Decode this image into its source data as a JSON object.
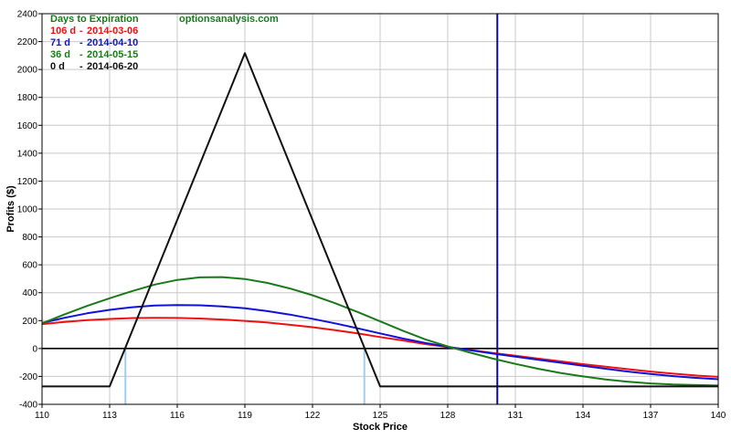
{
  "chart_data": {
    "type": "line",
    "title": "",
    "xlabel": "Stock Price",
    "ylabel": "Profits ($)",
    "xlim": [
      110,
      140
    ],
    "ylim": [
      -400,
      2400
    ],
    "x_ticks": [
      110,
      113,
      116,
      119,
      122,
      125,
      128,
      131,
      134,
      137,
      140
    ],
    "y_ticks": [
      -400,
      -200,
      0,
      200,
      400,
      600,
      800,
      1000,
      1200,
      1400,
      1600,
      1800,
      2000,
      2200,
      2400
    ],
    "grid": true,
    "legend_placement": "top-left",
    "legend_heading": "Days to Expiration",
    "watermark": "optionsanalysis.com",
    "current_price_line": {
      "x": 130.2,
      "color": "#0a0aa8"
    },
    "breakeven_lines": {
      "x": [
        113.7,
        124.3
      ],
      "color": "#9ecdf0"
    },
    "zero_line": 0,
    "series": [
      {
        "days": "106 d",
        "sep": "-",
        "date": "2014-03-06",
        "color": "#ee1111",
        "x": [
          110,
          111,
          112,
          113,
          114,
          115,
          116,
          117,
          118,
          119,
          120,
          121,
          122,
          123,
          124,
          125,
          126,
          127,
          128,
          129,
          130,
          131,
          132,
          133,
          134,
          135,
          136,
          137,
          138,
          139,
          140
        ],
        "y": [
          175,
          190,
          203,
          212,
          218,
          220,
          219,
          215,
          208,
          198,
          186,
          170,
          153,
          132,
          108,
          82,
          58,
          32,
          10,
          -10,
          -32,
          -52,
          -72,
          -92,
          -112,
          -130,
          -148,
          -165,
          -180,
          -193,
          -203
        ]
      },
      {
        "days": "71 d",
        "sep": "-",
        "date": "2014-04-10",
        "color": "#1111dd",
        "x": [
          110,
          111,
          112,
          113,
          114,
          115,
          116,
          117,
          118,
          119,
          120,
          121,
          122,
          123,
          124,
          125,
          126,
          127,
          128,
          129,
          130,
          131,
          132,
          133,
          134,
          135,
          136,
          137,
          138,
          139,
          140
        ],
        "y": [
          183,
          220,
          252,
          277,
          296,
          308,
          312,
          310,
          302,
          288,
          268,
          243,
          213,
          180,
          145,
          108,
          72,
          40,
          12,
          -12,
          -36,
          -58,
          -80,
          -102,
          -124,
          -145,
          -165,
          -183,
          -198,
          -210,
          -220
        ]
      },
      {
        "days": "36 d",
        "sep": "-",
        "date": "2014-05-15",
        "color": "#1a7a1a",
        "x": [
          110,
          111,
          112,
          113,
          114,
          115,
          116,
          117,
          118,
          119,
          120,
          121,
          122,
          123,
          124,
          125,
          126,
          127,
          128,
          129,
          130,
          131,
          132,
          133,
          134,
          135,
          136,
          137,
          138,
          139,
          140
        ],
        "y": [
          180,
          245,
          305,
          360,
          412,
          458,
          492,
          510,
          512,
          498,
          470,
          430,
          382,
          325,
          262,
          195,
          128,
          66,
          15,
          -30,
          -72,
          -110,
          -145,
          -175,
          -200,
          -222,
          -238,
          -250,
          -258,
          -262,
          -265
        ]
      },
      {
        "days": "0 d",
        "sep": "-",
        "date": "2014-06-20",
        "color": "#111111",
        "x": [
          110,
          113,
          119,
          125,
          140
        ],
        "y": [
          -272,
          -272,
          2117,
          -272,
          -272
        ]
      }
    ]
  }
}
